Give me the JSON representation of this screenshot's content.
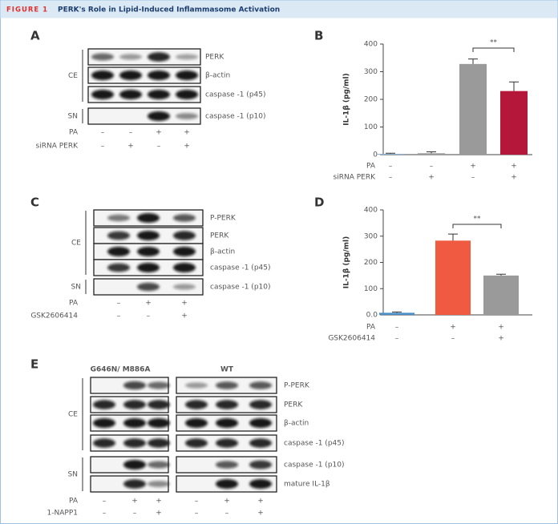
{
  "header": {
    "figure_label": "FIGURE 1",
    "title": "PERK's Role in Lipid-Induced Inflammasome Activation"
  },
  "blots": [
    {
      "label": "A",
      "groups": [
        {
          "name": "CE",
          "rows": [
            "PERK",
            "β-actin",
            "caspase -1 (p45)"
          ]
        },
        {
          "name": "SN",
          "rows": [
            "caspase -1 (p10)"
          ]
        }
      ],
      "conditions": [
        {
          "name": "PA",
          "values": [
            "–",
            "–",
            "+",
            "+"
          ]
        },
        {
          "name": "siRNA PERK",
          "values": [
            "–",
            "+",
            "–",
            "+"
          ]
        }
      ]
    },
    {
      "label": "C",
      "groups": [
        {
          "name": "CE",
          "rows": [
            "P-PERK",
            "PERK",
            "β-actin",
            "caspase -1 (p45)"
          ]
        },
        {
          "name": "SN",
          "rows": [
            "caspase -1 (p10)"
          ]
        }
      ],
      "conditions": [
        {
          "name": "PA",
          "values": [
            "–",
            "+",
            "+"
          ]
        },
        {
          "name": "GSK2606414",
          "values": [
            "–",
            "–",
            "+"
          ]
        }
      ]
    },
    {
      "label": "E",
      "column_headers": [
        "G646N/ M886A",
        "WT"
      ],
      "groups": [
        {
          "name": "CE",
          "rows": [
            "P-PERK",
            "PERK",
            "β-actin",
            "caspase -1 (p45)"
          ]
        },
        {
          "name": "SN",
          "rows": [
            "caspase -1 (p10)",
            "mature IL-1β"
          ]
        }
      ],
      "conditions": [
        {
          "name": "PA",
          "values": [
            "–",
            "+",
            "+",
            "–",
            "+",
            "+"
          ]
        },
        {
          "name": "1-NAPP1",
          "values": [
            "–",
            "–",
            "+",
            "–",
            "–",
            "+"
          ]
        }
      ]
    }
  ],
  "chart_data": [
    {
      "type": "bar",
      "label": "B",
      "y_label": "IL-1β (pg/ml)",
      "values": [
        3,
        5,
        328,
        230
      ],
      "errors": [
        2,
        5,
        18,
        33
      ],
      "colors": [
        "#8fb3d0",
        "#9a9a9a",
        "#9a9a9a",
        "#b5173a"
      ],
      "ylim": [
        0,
        400
      ],
      "yticks": [
        0,
        100,
        200,
        300,
        400
      ],
      "significance": "**",
      "conditions": [
        {
          "name": "PA",
          "values": [
            "–",
            "–",
            "+",
            "+"
          ]
        },
        {
          "name": "siRNA PERK",
          "values": [
            "–",
            "+",
            "–",
            "+"
          ]
        }
      ]
    },
    {
      "type": "bar",
      "label": "D",
      "y_label": "IL-1β (pg/ml)",
      "values": [
        8,
        283,
        150
      ],
      "errors": [
        3,
        25,
        5
      ],
      "colors": [
        "#4a90c8",
        "#f05a40",
        "#9a9a9a"
      ],
      "ylim": [
        0,
        400
      ],
      "yticks": [
        {
          "value": 0,
          "label": "0.0"
        },
        100,
        200,
        300,
        400
      ],
      "significance": "**",
      "conditions": [
        {
          "name": "PA",
          "values": [
            "–",
            "+",
            "+"
          ]
        },
        {
          "name": "GSK2606414",
          "values": [
            "–",
            "–",
            "+"
          ]
        }
      ]
    }
  ]
}
